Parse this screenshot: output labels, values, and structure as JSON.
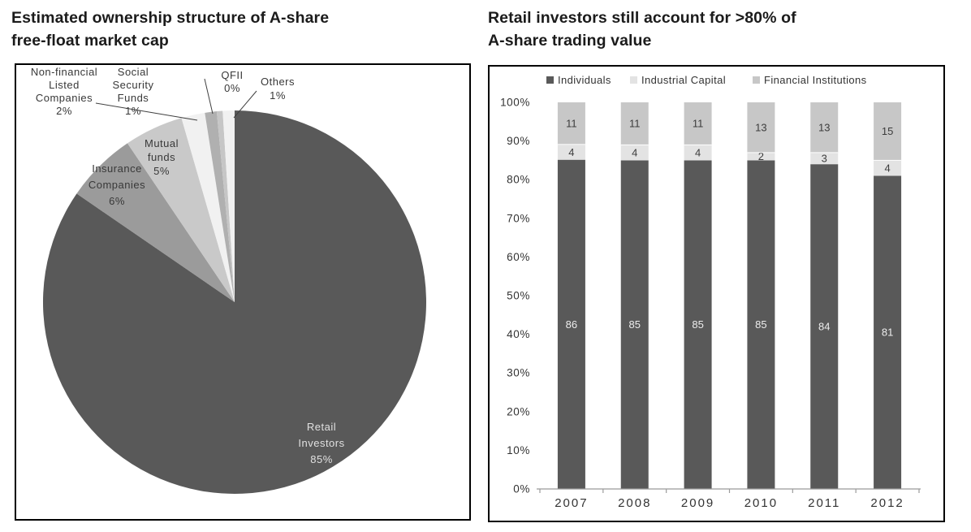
{
  "chart_data": [
    {
      "type": "pie",
      "title_lines": [
        "Estimated ownership structure of A-share",
        "free-float market cap"
      ],
      "legend_position": "none",
      "slices": [
        {
          "name": "retail-investors",
          "label_lines": [
            "Retail",
            "Investors",
            "85%"
          ],
          "value": 85,
          "color": "#595959",
          "label_color": "#e0e0e0"
        },
        {
          "name": "insurance-companies",
          "label_lines": [
            "Insurance",
            "Companies",
            "6%"
          ],
          "value": 6,
          "color": "#9b9b9b",
          "label_color": "#383838"
        },
        {
          "name": "mutual-funds",
          "label_lines": [
            "Mutual",
            "funds",
            "5%"
          ],
          "value": 5,
          "color": "#c9c9c9",
          "label_color": "#383838"
        },
        {
          "name": "non-financial-listed-companies",
          "label_lines": [
            "Non-financial",
            "Listed",
            "Companies",
            "2%"
          ],
          "value": 2,
          "color": "#f1f1f1",
          "label_color": "#383838"
        },
        {
          "name": "social-security-funds",
          "label_lines": [
            "Social",
            "Security",
            "Funds",
            "1%"
          ],
          "value": 1,
          "color": "#b0b0b0",
          "label_color": "#383838"
        },
        {
          "name": "qfii",
          "label_lines": [
            "QFII",
            "0%"
          ],
          "value": 0,
          "color": "#c6c6c6",
          "label_color": "#383838"
        },
        {
          "name": "others",
          "label_lines": [
            "Others",
            "1%"
          ],
          "value": 1,
          "color": "#f1f1f1",
          "label_color": "#383838"
        }
      ]
    },
    {
      "type": "bar",
      "stacked": true,
      "title_lines": [
        "Retail investors still account for >80% of",
        "A-share trading value"
      ],
      "categories": [
        "2007",
        "2008",
        "2009",
        "2010",
        "2011",
        "2012"
      ],
      "series": [
        {
          "name": "Individuals",
          "color": "#595959",
          "label_color": "#ededed",
          "values": [
            86,
            85,
            85,
            85,
            84,
            81
          ]
        },
        {
          "name": "Industrial Capital",
          "color": "#e3e3e3",
          "label_color": "#3c3c3c",
          "values": [
            4,
            4,
            4,
            2,
            3,
            4
          ]
        },
        {
          "name": "Financial Institutions",
          "color": "#c7c7c7",
          "label_color": "#3c3c3c",
          "values": [
            11,
            11,
            11,
            13,
            13,
            15
          ]
        }
      ],
      "y_ticks": [
        "0%",
        "10%",
        "20%",
        "30%",
        "40%",
        "50%",
        "60%",
        "70%",
        "80%",
        "90%",
        "100%"
      ],
      "ylim": [
        0,
        100
      ],
      "grid": false,
      "legend_position": "top"
    }
  ]
}
